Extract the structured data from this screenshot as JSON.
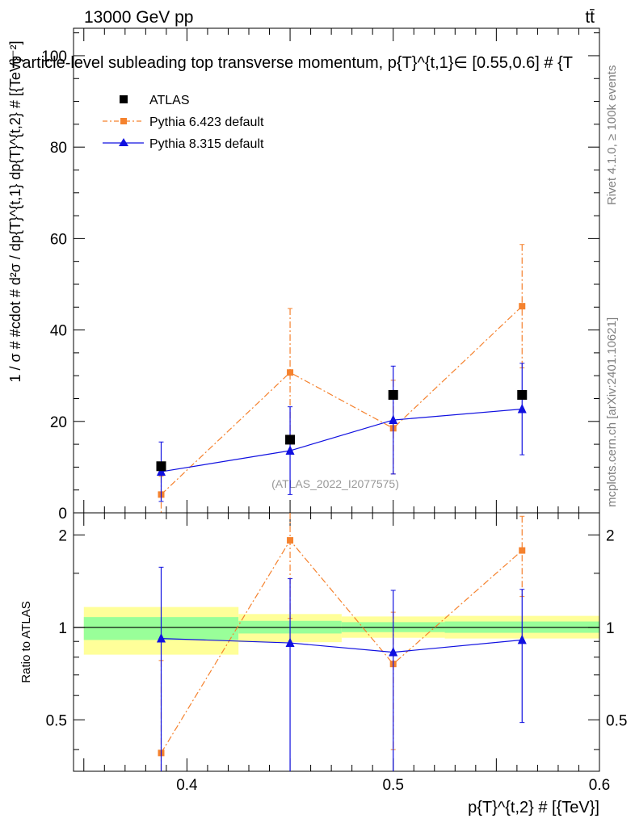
{
  "header": {
    "energy_label": "13000 GeV pp",
    "process_label": "tt̄",
    "title": "Particle-level subleading top transverse momentum, p{T}^{t,1}∈ [0.55,0.6] # {T",
    "side_label_rivet": "Rivet 4.1.0, ≥ 100k events",
    "side_label_mcplots": "mcplots.cern.ch [arXiv:2401.10621]",
    "watermark": "(ATLAS_2022_I2077575)"
  },
  "chart_data": [
    {
      "type": "line",
      "panel": "main",
      "ylabel": "1 / σ # #cdot # d²σ / dp{T}^{t,1} dp{T}^{t,2} # [{TeV}⁻²]",
      "xlabel": "",
      "xlim": [
        0.345,
        0.6
      ],
      "ylim": [
        0,
        106
      ],
      "yticks": [
        0,
        20,
        40,
        60,
        80,
        100
      ],
      "legend_position": "top-left",
      "series": [
        {
          "name": "ATLAS",
          "style": "black-square",
          "x": [
            0.3875,
            0.45,
            0.5,
            0.5625
          ],
          "y": [
            10.2,
            16.0,
            25.8,
            25.8
          ],
          "yerr": [
            0,
            0,
            0,
            0
          ]
        },
        {
          "name": "Pythia 6.423 default",
          "style": "orange-dashdot-square",
          "x": [
            0.3875,
            0.45,
            0.5,
            0.5625
          ],
          "y": [
            4.0,
            30.7,
            18.5,
            45.2
          ],
          "yerr_low": [
            4.0,
            14.0,
            10.0,
            13.5
          ],
          "yerr_high": [
            4.0,
            14.0,
            10.5,
            13.5
          ]
        },
        {
          "name": "Pythia 8.315 default",
          "style": "blue-solid-triangle",
          "x": [
            0.3875,
            0.45,
            0.5,
            0.5625
          ],
          "y": [
            9.0,
            13.6,
            20.3,
            22.7
          ],
          "yerr_low": [
            6.5,
            9.6,
            11.8,
            10.0
          ],
          "yerr_high": [
            6.5,
            9.6,
            11.8,
            10.0
          ]
        }
      ]
    },
    {
      "type": "line",
      "panel": "ratio",
      "ylabel": "Ratio to ATLAS",
      "xlabel": "p{T}^{t,2} # [{TeV}]",
      "xlim": [
        0.345,
        0.6
      ],
      "ylim": [
        0.34,
        2.36
      ],
      "yticks": [
        0.5,
        1,
        2
      ],
      "xticks": [
        0.4,
        0.5,
        0.6
      ],
      "bands": [
        {
          "x": [
            0.35,
            0.425
          ],
          "inner": [
            0.91,
            1.08
          ],
          "outer": [
            0.815,
            1.165
          ]
        },
        {
          "x": [
            0.425,
            0.475
          ],
          "inner": [
            0.955,
            1.05
          ],
          "outer": [
            0.895,
            1.105
          ]
        },
        {
          "x": [
            0.475,
            0.525
          ],
          "inner": [
            0.965,
            1.04
          ],
          "outer": [
            0.925,
            1.085
          ]
        },
        {
          "x": [
            0.525,
            0.6
          ],
          "inner": [
            0.96,
            1.045
          ],
          "outer": [
            0.92,
            1.09
          ]
        }
      ],
      "series": [
        {
          "name": "Pythia 6.423 default",
          "style": "orange-dashdot-square",
          "x": [
            0.3875,
            0.45,
            0.5,
            0.5625
          ],
          "y": [
            0.39,
            1.92,
            0.76,
            1.78
          ],
          "yerr_low": [
            0.39,
            0.85,
            0.36,
            0.52
          ],
          "yerr_high": [
            0.39,
            0.85,
            0.36,
            0.52
          ]
        },
        {
          "name": "Pythia 8.315 default",
          "style": "blue-solid-triangle",
          "x": [
            0.3875,
            0.45,
            0.5,
            0.5625
          ],
          "y": [
            0.92,
            0.89,
            0.83,
            0.91
          ],
          "yerr_low": [
            0.65,
            0.55,
            0.49,
            0.42
          ],
          "yerr_high": [
            0.65,
            0.55,
            0.49,
            0.42
          ]
        }
      ]
    }
  ],
  "colors": {
    "atlas": "#000000",
    "pythia6": "#f5822e",
    "pythia8": "#1010e0",
    "band_inner": "#99ff99",
    "band_outer": "#ffff99",
    "side_text": "#808080",
    "watermark": "#999999"
  }
}
